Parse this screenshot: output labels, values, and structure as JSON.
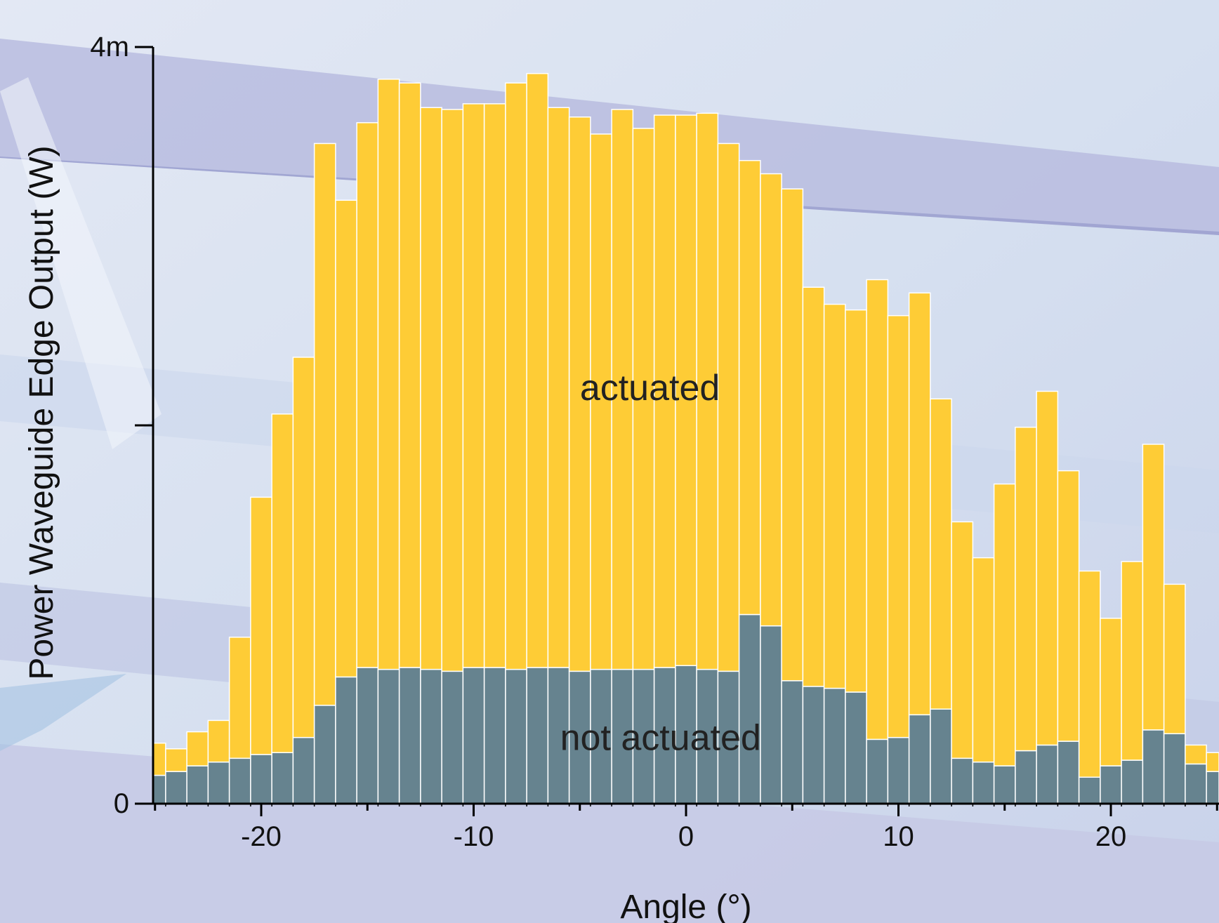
{
  "chart_data": {
    "type": "bar",
    "stacked": true,
    "xlabel": "Angle (°)",
    "ylabel": "Power Waveguide Edge Output (W)",
    "x_ticks": [
      "-20",
      "-10",
      "0",
      "10",
      "20"
    ],
    "x_tick_values": [
      -20,
      -10,
      0,
      10,
      20
    ],
    "y_ticks": [
      {
        "value": 0,
        "label": "0"
      },
      {
        "value": 0.002,
        "label": ""
      },
      {
        "value": 0.004,
        "label": "4m"
      }
    ],
    "xlim": [
      -25,
      25
    ],
    "ylim": [
      0,
      0.004
    ],
    "grid": false,
    "x": [
      -25,
      -24,
      -23,
      -22,
      -21,
      -20,
      -19,
      -18,
      -17,
      -16,
      -15,
      -14,
      -13,
      -12,
      -11,
      -10,
      -9,
      -8,
      -7,
      -6,
      -5,
      -4,
      -3,
      -2,
      -1,
      0,
      1,
      2,
      3,
      4,
      5,
      6,
      7,
      8,
      9,
      10,
      11,
      12,
      13,
      14,
      15,
      16,
      17,
      18,
      19,
      20,
      21,
      22,
      23,
      24,
      25
    ],
    "series": [
      {
        "name": "not actuated",
        "color": "#66838f",
        "values": [
          0.00015,
          0.00017,
          0.0002,
          0.00022,
          0.00024,
          0.00026,
          0.00027,
          0.00035,
          0.00052,
          0.00067,
          0.00072,
          0.00071,
          0.00072,
          0.00071,
          0.0007,
          0.00072,
          0.00072,
          0.00071,
          0.00072,
          0.00072,
          0.0007,
          0.00071,
          0.00071,
          0.00071,
          0.00072,
          0.00073,
          0.00071,
          0.0007,
          0.001,
          0.00094,
          0.00065,
          0.00062,
          0.00061,
          0.00059,
          0.00034,
          0.00035,
          0.00047,
          0.0005,
          0.00024,
          0.00022,
          0.0002,
          0.00028,
          0.00031,
          0.00033,
          0.00014,
          0.0002,
          0.00023,
          0.00039,
          0.00037,
          0.00021,
          0.00017
        ]
      },
      {
        "name": "actuated",
        "color": "#fecc36",
        "values": [
          0.00017,
          0.00012,
          0.00018,
          0.00022,
          0.00064,
          0.00136,
          0.00179,
          0.00201,
          0.00297,
          0.00252,
          0.00288,
          0.00312,
          0.00309,
          0.00297,
          0.00297,
          0.00298,
          0.00298,
          0.0031,
          0.00314,
          0.00296,
          0.00293,
          0.00283,
          0.00296,
          0.00286,
          0.00292,
          0.00291,
          0.00294,
          0.00279,
          0.0024,
          0.00239,
          0.0026,
          0.00211,
          0.00203,
          0.00202,
          0.00243,
          0.00223,
          0.00223,
          0.00164,
          0.00125,
          0.00108,
          0.00149,
          0.00171,
          0.00187,
          0.00143,
          0.00109,
          0.00078,
          0.00105,
          0.00151,
          0.00079,
          0.0001,
          0.0001
        ]
      }
    ],
    "annotations": [
      {
        "text": "actuated",
        "x": -1.7,
        "y": 0.0022
      },
      {
        "text": "not actuated",
        "x": -1.2,
        "y": 0.00035
      }
    ]
  },
  "colors": {
    "background": "#d9e1f0",
    "band": "#b4b7dc",
    "bar_edge": "#ffffff",
    "axis": "#000000"
  }
}
